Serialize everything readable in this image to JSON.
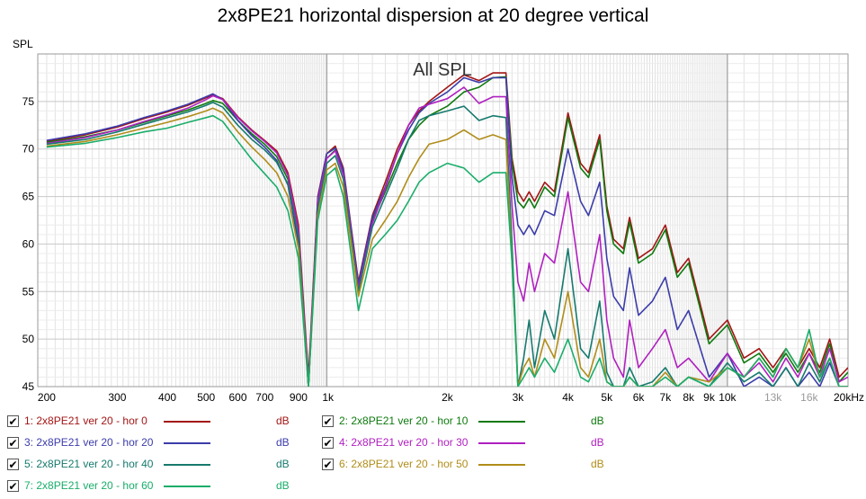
{
  "chart_data": {
    "type": "line",
    "title": "2x8PE21 horizontal dispersion at 20 degree vertical",
    "ylabel": "SPL",
    "annotation": "All SPL",
    "xscale": "log",
    "xlim": [
      190,
      20000
    ],
    "ylim": [
      45,
      80
    ],
    "grid": true,
    "legend_position": "bottom",
    "x_tick_labels": [
      "200",
      "300",
      "400",
      "500",
      "600",
      "700",
      "900",
      "1k",
      "2k",
      "3k",
      "4k",
      "5k",
      "6k",
      "7k",
      "8k",
      "9k",
      "10k",
      "13k",
      "16k",
      "20kHz"
    ],
    "x_tick_values": [
      200,
      300,
      400,
      500,
      600,
      700,
      900,
      1000,
      2000,
      3000,
      4000,
      5000,
      6000,
      7000,
      8000,
      9000,
      10000,
      13000,
      16000,
      20000
    ],
    "y_tick_labels": [
      "45",
      "50",
      "55",
      "60",
      "65",
      "70",
      "75"
    ],
    "y_tick_values": [
      45,
      50,
      55,
      60,
      65,
      70,
      75
    ],
    "series": [
      {
        "name": "1: 2x8PE21 ver 20 - hor 0",
        "unit": "dB",
        "color": "#a31515",
        "x": [
          200,
          250,
          300,
          350,
          400,
          450,
          500,
          520,
          550,
          600,
          650,
          700,
          750,
          800,
          850,
          900,
          950,
          1000,
          1050,
          1100,
          1200,
          1300,
          1400,
          1500,
          1600,
          1700,
          1800,
          2000,
          2200,
          2400,
          2600,
          2800,
          2900,
          3000,
          3100,
          3200,
          3300,
          3500,
          3700,
          4000,
          4300,
          4500,
          4800,
          5000,
          5200,
          5500,
          5700,
          6000,
          6500,
          7000,
          7500,
          8000,
          9000,
          10000,
          11000,
          12000,
          13000,
          14000,
          15000,
          16000,
          17000,
          18000,
          19000,
          20000
        ],
        "y": [
          70.8,
          71.5,
          72.3,
          73.2,
          73.9,
          74.6,
          75.4,
          75.7,
          75.3,
          73.4,
          72.0,
          70.9,
          69.8,
          67.5,
          62,
          46,
          65,
          69.5,
          70.3,
          68,
          56,
          63,
          66.5,
          70,
          72.5,
          74,
          75,
          76.5,
          77.8,
          77.2,
          78,
          78,
          69,
          65.5,
          64.5,
          65.5,
          64.5,
          66.5,
          65.5,
          73.8,
          68.5,
          67.5,
          71.5,
          64,
          60.5,
          59.5,
          62.8,
          58.5,
          59.5,
          62,
          57,
          58.5,
          50,
          52,
          48,
          49,
          47,
          49,
          47,
          49,
          47,
          50,
          46,
          47
        ]
      },
      {
        "name": "2: 2x8PE21 ver 20 - hor 10",
        "unit": "dB",
        "color": "#0e7a0e",
        "x": [
          200,
          250,
          300,
          350,
          400,
          450,
          500,
          520,
          550,
          600,
          650,
          700,
          750,
          800,
          850,
          900,
          950,
          1000,
          1050,
          1100,
          1200,
          1300,
          1400,
          1500,
          1600,
          1700,
          1800,
          2000,
          2200,
          2400,
          2600,
          2800,
          2900,
          3000,
          3100,
          3200,
          3300,
          3500,
          3700,
          4000,
          4300,
          4500,
          4800,
          5000,
          5200,
          5500,
          5700,
          6000,
          6500,
          7000,
          7500,
          8000,
          9000,
          10000,
          11000,
          12000,
          13000,
          14000,
          15000,
          16000,
          17000,
          18000,
          19000,
          20000
        ],
        "y": [
          70.7,
          71.3,
          72.0,
          72.8,
          73.5,
          74.1,
          74.8,
          75.1,
          74.8,
          73.0,
          71.6,
          70.5,
          69.2,
          66.8,
          61,
          45,
          64.5,
          69,
          69.9,
          67.5,
          55.5,
          62.5,
          65.5,
          68.5,
          71,
          72.5,
          73.5,
          74.5,
          76,
          76.5,
          77.5,
          77.6,
          68.5,
          64.5,
          63.8,
          64.8,
          63.8,
          66,
          65,
          73.3,
          68,
          67,
          71,
          63.5,
          60,
          59,
          62.3,
          58,
          59,
          61.5,
          56.5,
          58,
          49.5,
          51.5,
          47.5,
          48.5,
          46.5,
          48.5,
          46.5,
          48.5,
          46.5,
          49.5,
          45.5,
          46.5
        ]
      },
      {
        "name": "3: 2x8PE21 ver 20 - hor 20",
        "unit": "dB",
        "color": "#3c3caa",
        "x": [
          200,
          250,
          300,
          350,
          400,
          450,
          500,
          520,
          550,
          600,
          650,
          700,
          750,
          800,
          850,
          900,
          950,
          1000,
          1050,
          1100,
          1200,
          1300,
          1400,
          1500,
          1600,
          1700,
          1800,
          2000,
          2200,
          2400,
          2600,
          2800,
          2900,
          3000,
          3100,
          3200,
          3300,
          3500,
          3700,
          4000,
          4300,
          4500,
          4800,
          5000,
          5200,
          5500,
          5700,
          6000,
          6500,
          7000,
          7500,
          8000,
          9000,
          10000,
          11000,
          12000,
          13000,
          14000,
          15000,
          16000,
          17000,
          18000,
          19000,
          20000
        ],
        "y": [
          70.9,
          71.6,
          72.4,
          73.3,
          74.0,
          74.7,
          75.5,
          75.8,
          75.2,
          73.0,
          71.4,
          70.2,
          68.8,
          66.2,
          60,
          45,
          64.8,
          69.5,
          70.1,
          67.8,
          55.8,
          62.8,
          66,
          69.5,
          72,
          73.8,
          74.8,
          76,
          77.5,
          77,
          77.5,
          77.5,
          67,
          62,
          61,
          62,
          61,
          63.5,
          63,
          70,
          64.5,
          63,
          66.5,
          58.5,
          54.5,
          53,
          57.5,
          52.5,
          54,
          56.5,
          51,
          53,
          46,
          48.5,
          45,
          46,
          45,
          47,
          45,
          46.5,
          45,
          47.5,
          45,
          45
        ]
      },
      {
        "name": "4: 2x8PE21 ver 20 - hor 30",
        "unit": "dB",
        "color": "#b020c0",
        "x": [
          200,
          250,
          300,
          350,
          400,
          450,
          500,
          520,
          550,
          600,
          650,
          700,
          750,
          800,
          850,
          900,
          950,
          1000,
          1050,
          1100,
          1200,
          1300,
          1400,
          1500,
          1600,
          1700,
          1800,
          2000,
          2200,
          2400,
          2600,
          2800,
          2900,
          3000,
          3100,
          3200,
          3300,
          3500,
          3700,
          4000,
          4300,
          4500,
          4800,
          5000,
          5200,
          5500,
          5700,
          6000,
          6500,
          7000,
          7500,
          8000,
          9000,
          10000,
          11000,
          12000,
          13000,
          14000,
          15000,
          16000,
          17000,
          18000,
          19000,
          20000
        ],
        "y": [
          70.6,
          71.2,
          72.0,
          72.9,
          73.6,
          74.3,
          75.2,
          75.6,
          75.2,
          73.3,
          71.9,
          70.8,
          69.6,
          67.2,
          61.5,
          45.5,
          64.5,
          69,
          69.8,
          67.3,
          55.3,
          62.2,
          65.8,
          69.5,
          72.5,
          74.3,
          74.7,
          75.3,
          76.5,
          74.8,
          75.5,
          75.5,
          64,
          56,
          54,
          58,
          55,
          59,
          58,
          65.5,
          56,
          55,
          61,
          52,
          48,
          46,
          52,
          47,
          49,
          51,
          47,
          48,
          45.5,
          48.5,
          46,
          47.5,
          45.5,
          48,
          46,
          48.5,
          46,
          49,
          45.5,
          46
        ]
      },
      {
        "name": "5: 2x8PE21 ver 20 - hor 40",
        "unit": "dB",
        "color": "#167a6e",
        "x": [
          200,
          250,
          300,
          350,
          400,
          450,
          500,
          520,
          550,
          600,
          650,
          700,
          750,
          800,
          850,
          900,
          950,
          1000,
          1050,
          1100,
          1200,
          1300,
          1400,
          1500,
          1600,
          1700,
          1800,
          2000,
          2200,
          2400,
          2600,
          2800,
          2900,
          3000,
          3100,
          3200,
          3300,
          3500,
          3700,
          4000,
          4300,
          4500,
          4800,
          5000,
          5200,
          5500,
          5700,
          6000,
          6500,
          7000,
          7500,
          8000,
          9000,
          10000,
          11000,
          12000,
          13000,
          14000,
          15000,
          16000,
          17000,
          18000,
          19000,
          20000
        ],
        "y": [
          70.5,
          71.0,
          71.8,
          72.6,
          73.3,
          73.9,
          74.6,
          74.9,
          74.4,
          72.5,
          71.0,
          69.9,
          68.6,
          66.3,
          60.8,
          45,
          63.8,
          68.5,
          69.3,
          66.8,
          55,
          61.8,
          65,
          68,
          71,
          73,
          73.5,
          74,
          74.5,
          73,
          73.5,
          73.3,
          60,
          45,
          48,
          52,
          47,
          53,
          50,
          59.5,
          49,
          48,
          54,
          46.5,
          45,
          45,
          47,
          45,
          45.5,
          47,
          45,
          46,
          45,
          47.5,
          45.5,
          46.5,
          45,
          47,
          45,
          47.5,
          45.5,
          48,
          45,
          45
        ]
      },
      {
        "name": "6: 2x8PE21 ver 20 - hor 50",
        "unit": "dB",
        "color": "#b08d1a",
        "x": [
          200,
          250,
          300,
          350,
          400,
          450,
          500,
          520,
          550,
          600,
          650,
          700,
          750,
          800,
          850,
          900,
          950,
          1000,
          1050,
          1100,
          1200,
          1300,
          1400,
          1500,
          1600,
          1700,
          1800,
          2000,
          2200,
          2400,
          2600,
          2800,
          2900,
          3000,
          3100,
          3200,
          3300,
          3500,
          3700,
          4000,
          4300,
          4500,
          4800,
          5000,
          5200,
          5500,
          5700,
          6000,
          6500,
          7000,
          7500,
          8000,
          9000,
          10000,
          11000,
          12000,
          13000,
          14000,
          15000,
          16000,
          17000,
          18000,
          19000,
          20000
        ],
        "y": [
          70.3,
          70.8,
          71.5,
          72.2,
          72.8,
          73.4,
          74.0,
          74.3,
          73.8,
          71.8,
          70.2,
          68.9,
          67.5,
          65,
          59.5,
          45,
          63,
          67.8,
          68.5,
          66,
          54.5,
          60.5,
          62.5,
          64.5,
          67,
          69,
          70.5,
          71,
          72,
          71,
          71.5,
          71,
          58,
          45,
          47,
          48,
          46,
          50,
          48,
          55,
          47,
          46,
          50,
          45.5,
          45,
          45,
          46,
          45,
          45,
          46.5,
          45,
          46,
          45.5,
          47,
          46,
          48,
          46,
          49,
          47,
          50,
          46,
          48,
          45,
          45
        ]
      },
      {
        "name": "7: 2x8PE21 ver 20 - hor 60",
        "unit": "dB",
        "color": "#1aad6a",
        "x": [
          200,
          250,
          300,
          350,
          400,
          450,
          500,
          520,
          550,
          600,
          650,
          700,
          750,
          800,
          850,
          900,
          950,
          1000,
          1050,
          1100,
          1200,
          1300,
          1400,
          1500,
          1600,
          1700,
          1800,
          2000,
          2200,
          2400,
          2600,
          2800,
          2900,
          3000,
          3100,
          3200,
          3300,
          3500,
          3700,
          4000,
          4300,
          4500,
          4800,
          5000,
          5200,
          5500,
          5700,
          6000,
          6500,
          7000,
          7500,
          8000,
          9000,
          10000,
          11000,
          12000,
          13000,
          14000,
          15000,
          16000,
          17000,
          18000,
          19000,
          20000
        ],
        "y": [
          70.2,
          70.6,
          71.2,
          71.8,
          72.2,
          72.8,
          73.3,
          73.5,
          72.9,
          70.8,
          68.9,
          67.4,
          66,
          63.5,
          58.5,
          45,
          62.5,
          67.2,
          68,
          65,
          53,
          59.5,
          61,
          62.5,
          64.5,
          66.5,
          67.5,
          68.5,
          68,
          66.5,
          67.5,
          67.5,
          58,
          45,
          46,
          47,
          46,
          48,
          46.5,
          50,
          46,
          45.5,
          48,
          45.5,
          45,
          45,
          46,
          45,
          45,
          46,
          45,
          46,
          45,
          47,
          46,
          48,
          46,
          49,
          47,
          51,
          46,
          48,
          45,
          45
        ]
      }
    ]
  }
}
